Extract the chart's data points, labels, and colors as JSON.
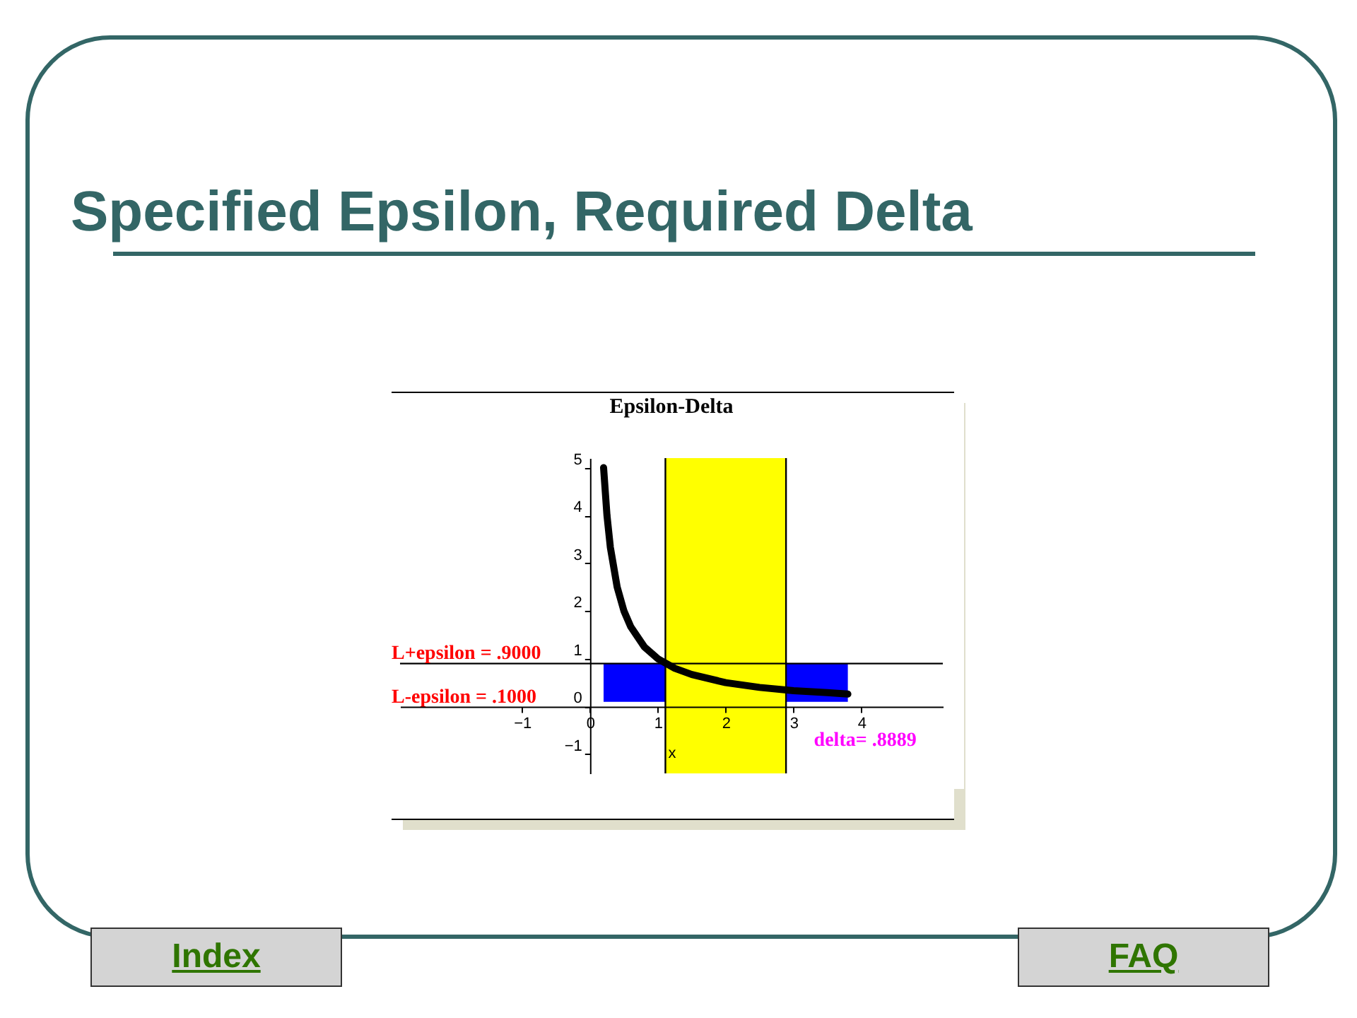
{
  "chart_data": {
    "type": "line",
    "title": "Specified Epsilon, Required Delta",
    "subtitle": "Epsilon-Delta",
    "xlabel": "x",
    "x": [
      0.2,
      0.25,
      0.3,
      0.4,
      0.5,
      0.6,
      0.8,
      1,
      1.25,
      1.5,
      2,
      2.5,
      3,
      3.5,
      3.8
    ],
    "series": [
      {
        "color": "#000000",
        "values": [
          5,
          4,
          3.33,
          2.5,
          2,
          1.67,
          1.25,
          1,
          0.8,
          0.67,
          0.5,
          0.4,
          0.33,
          0.29,
          0.26
        ]
      }
    ],
    "xlim": [
      -2.8,
      5.2
    ],
    "ylim": [
      -1.4,
      5.2
    ],
    "xticks": [
      -1,
      0,
      1,
      2,
      3,
      4
    ],
    "yticks": [
      -1,
      0,
      1,
      2,
      3,
      4,
      5
    ],
    "grid": false,
    "marker": "none",
    "line_style": "solid",
    "bands": [
      {
        "axis": "y",
        "from": 0.1,
        "to": 0.9,
        "color": "#0000ff"
      },
      {
        "axis": "x",
        "from": 1.1111,
        "to": 2.8889,
        "color": "#ffff00"
      }
    ],
    "ref_lines": [
      {
        "axis": "x",
        "value": 1.1111,
        "color": "#000000"
      },
      {
        "axis": "x",
        "value": 2.8889,
        "color": "#000000"
      },
      {
        "axis": "y",
        "value": 0.9,
        "color": "#000000"
      }
    ],
    "annotations": [
      "L+epsilon = .9000",
      "L-epsilon = .1000",
      "delta= .8889",
      "Index",
      "FAQ"
    ]
  }
}
